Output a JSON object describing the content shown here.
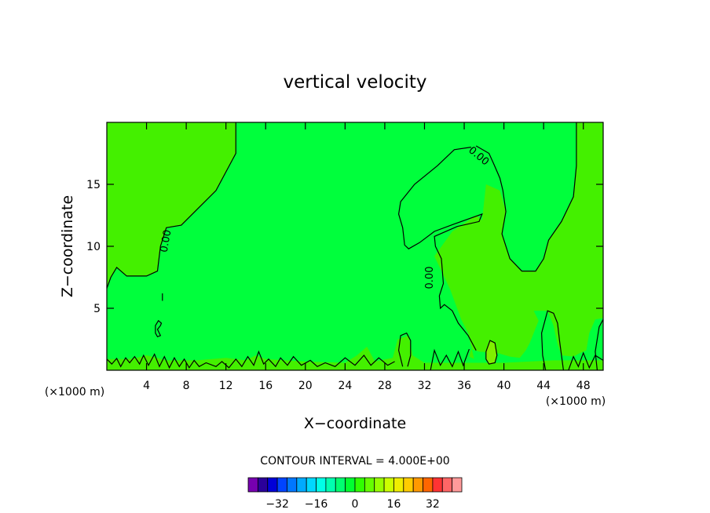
{
  "chart_data": {
    "type": "heatmap",
    "title": "vertical velocity",
    "xlabel": "X−coordinate",
    "ylabel": "Z−coordinate",
    "x_unit": "(×1000 m)",
    "y_unit": "(×1000 m)",
    "xlim": [
      0,
      50
    ],
    "ylim": [
      0,
      20
    ],
    "x_ticks": [
      4,
      8,
      12,
      16,
      20,
      24,
      28,
      32,
      36,
      40,
      44,
      48
    ],
    "y_ticks": [
      5,
      10,
      15
    ],
    "contour_interval_text": "CONTOUR INTERVAL = 4.000E+00",
    "contour_labels": [
      "0.00",
      "0.00",
      "0.00"
    ],
    "colorbar": {
      "tick_values": [
        -32,
        -16,
        0,
        16,
        32
      ],
      "tick_labels": [
        "−32",
        "−16",
        "0",
        "16",
        "32"
      ],
      "colors": [
        "#7700b0",
        "#2a009a",
        "#0000d8",
        "#0044ff",
        "#0077ff",
        "#00aaff",
        "#00d8ff",
        "#00ffe8",
        "#00ffb0",
        "#00ff70",
        "#00ff30",
        "#30ff00",
        "#66ff00",
        "#99ff00",
        "#ccff00",
        "#f0ee00",
        "#ffcc00",
        "#ff9900",
        "#ff6600",
        "#ff3333",
        "#ff6666",
        "#ff9a9a"
      ]
    },
    "field_colors": {
      "positive_region": "#44f000",
      "near_zero_region": "#00ff3c",
      "strong_updraft": "#80f000"
    }
  }
}
